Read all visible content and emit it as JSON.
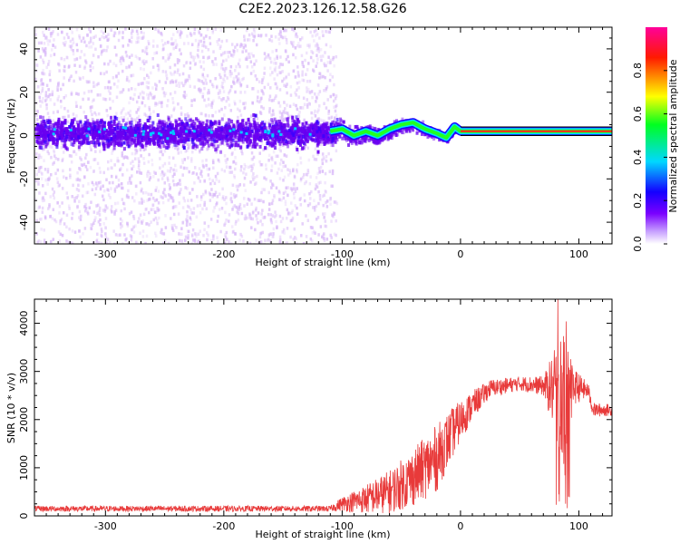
{
  "title": "C2E2.2023.126.12.58.G26",
  "colors": {
    "snr_line": "#e83a3a",
    "ridge_green": "#22ff22",
    "ridge_red": "#ff2020",
    "scatter": "#6a00f0",
    "scatter_light": "#d8b8f8"
  },
  "chart_data": [
    {
      "type": "heatmap",
      "name": "spectrogram",
      "xlabel": "Height of straight line (km)",
      "ylabel": "Frequency (Hz)",
      "xlim": [
        -360,
        128
      ],
      "ylim": [
        -50,
        50
      ],
      "xticks": [
        -300,
        -200,
        -100,
        0,
        100
      ],
      "yticks": [
        -40,
        -20,
        0,
        20,
        40
      ],
      "xtick_labels": [
        "-300",
        "-200",
        "-100",
        "0",
        "100"
      ],
      "ytick_labels": [
        "-40",
        "-20",
        "0",
        "20",
        "40"
      ],
      "colorbar": {
        "label": "Normalized spectral amplitude",
        "range": [
          0,
          1
        ],
        "ticks": [
          0.0,
          0.2,
          0.4,
          0.6,
          0.8
        ],
        "tick_labels": [
          "0.0",
          "0.2",
          "0.4",
          "0.6",
          "0.8"
        ],
        "colors": [
          "#ffffff",
          "#8a00ff",
          "#0000ff",
          "#00ffff",
          "#00ff00",
          "#ffff00",
          "#ff0000",
          "#ff00aa"
        ]
      },
      "ridge": [
        {
          "x": -360,
          "y": 2
        },
        {
          "x": -300,
          "y": 2
        },
        {
          "x": -200,
          "y": 2
        },
        {
          "x": -110,
          "y": 2
        },
        {
          "x": -100,
          "y": 3
        },
        {
          "x": -90,
          "y": 0
        },
        {
          "x": -80,
          "y": 2
        },
        {
          "x": -70,
          "y": 0
        },
        {
          "x": -60,
          "y": 3
        },
        {
          "x": -50,
          "y": 5
        },
        {
          "x": -40,
          "y": 6
        },
        {
          "x": -30,
          "y": 3
        },
        {
          "x": -20,
          "y": 1
        },
        {
          "x": -12,
          "y": -1
        },
        {
          "x": -5,
          "y": 4
        },
        {
          "x": 0,
          "y": 2
        },
        {
          "x": 20,
          "y": 2
        },
        {
          "x": 60,
          "y": 2
        },
        {
          "x": 100,
          "y": 2
        },
        {
          "x": 128,
          "y": 2
        }
      ],
      "noise_region": {
        "x_from": -360,
        "x_to": -105,
        "y_from": -50,
        "y_to": 50
      }
    },
    {
      "type": "line",
      "name": "snr",
      "xlabel": "Height of straight line (km)",
      "ylabel": "SNR (10 * v/v)",
      "xlim": [
        -360,
        128
      ],
      "ylim": [
        0,
        4500
      ],
      "xticks": [
        -300,
        -200,
        -100,
        0,
        100
      ],
      "yticks": [
        0,
        1000,
        2000,
        3000,
        4000
      ],
      "xtick_labels": [
        "-300",
        "-200",
        "-100",
        "0",
        "100"
      ],
      "ytick_labels": [
        "0",
        "1000",
        "2000",
        "3000",
        "4000"
      ],
      "series": [
        {
          "name": "SNR",
          "envelope": [
            {
              "x": -360,
              "mean": 150,
              "spread": 60
            },
            {
              "x": -110,
              "mean": 150,
              "spread": 60
            },
            {
              "x": -100,
              "mean": 250,
              "spread": 150
            },
            {
              "x": -80,
              "mean": 350,
              "spread": 300
            },
            {
              "x": -60,
              "mean": 500,
              "spread": 450
            },
            {
              "x": -40,
              "mean": 800,
              "spread": 600
            },
            {
              "x": -20,
              "mean": 1200,
              "spread": 700
            },
            {
              "x": -5,
              "mean": 1800,
              "spread": 500
            },
            {
              "x": 10,
              "mean": 2300,
              "spread": 300
            },
            {
              "x": 25,
              "mean": 2650,
              "spread": 180
            },
            {
              "x": 50,
              "mean": 2750,
              "spread": 150
            },
            {
              "x": 70,
              "mean": 2700,
              "spread": 200
            },
            {
              "x": 80,
              "mean": 2600,
              "spread": 900
            },
            {
              "x": 88,
              "mean": 2500,
              "spread": 1800
            },
            {
              "x": 95,
              "mean": 2700,
              "spread": 400
            },
            {
              "x": 108,
              "mean": 2600,
              "spread": 150
            },
            {
              "x": 112,
              "mean": 2200,
              "spread": 150
            },
            {
              "x": 128,
              "mean": 2200,
              "spread": 120
            }
          ]
        }
      ]
    }
  ]
}
